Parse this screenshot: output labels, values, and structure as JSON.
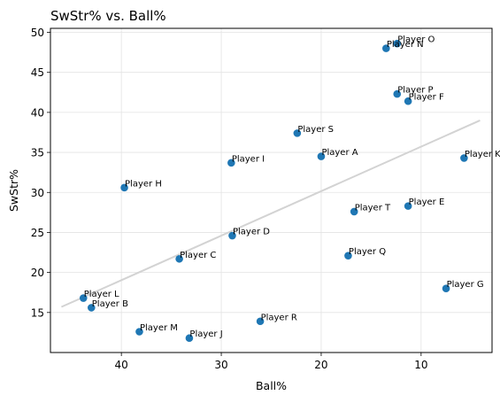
{
  "chart_data": {
    "type": "scatter",
    "title": "SwStr% vs. Ball%",
    "xlabel": "Ball%",
    "ylabel": "SwStr%",
    "x_inverted": true,
    "xlim": [
      47.1,
      2.9
    ],
    "ylim": [
      10.0,
      50.5
    ],
    "xticks": [
      40,
      30,
      20,
      10
    ],
    "yticks": [
      15,
      20,
      25,
      30,
      35,
      40,
      45,
      50
    ],
    "grid": true,
    "point_color": "#1f77b4",
    "trend_color": "#d3d3d3",
    "points": [
      {
        "label": "Player A",
        "x": 20.0,
        "y": 34.5
      },
      {
        "label": "Player B",
        "x": 43.0,
        "y": 15.6
      },
      {
        "label": "Player C",
        "x": 34.2,
        "y": 21.7
      },
      {
        "label": "Player D",
        "x": 28.9,
        "y": 24.6
      },
      {
        "label": "Player E",
        "x": 11.3,
        "y": 28.3
      },
      {
        "label": "Player F",
        "x": 11.3,
        "y": 41.4
      },
      {
        "label": "Player G",
        "x": 7.5,
        "y": 18.0
      },
      {
        "label": "Player H",
        "x": 39.7,
        "y": 30.6
      },
      {
        "label": "Player I",
        "x": 29.0,
        "y": 33.7
      },
      {
        "label": "Player J",
        "x": 33.2,
        "y": 11.8
      },
      {
        "label": "Player K",
        "x": 5.7,
        "y": 34.3
      },
      {
        "label": "Player L",
        "x": 43.8,
        "y": 16.8
      },
      {
        "label": "Player M",
        "x": 38.2,
        "y": 12.6
      },
      {
        "label": "Player N",
        "x": 13.5,
        "y": 48.0
      },
      {
        "label": "Player O",
        "x": 12.4,
        "y": 48.6
      },
      {
        "label": "Player P",
        "x": 12.4,
        "y": 42.3
      },
      {
        "label": "Player Q",
        "x": 17.3,
        "y": 22.1
      },
      {
        "label": "Player R",
        "x": 26.1,
        "y": 13.9
      },
      {
        "label": "Player S",
        "x": 22.4,
        "y": 37.4
      },
      {
        "label": "Player T",
        "x": 16.7,
        "y": 27.6
      }
    ],
    "trend_line": {
      "x": [
        46.0,
        4.1
      ],
      "y": [
        15.7,
        39.0
      ]
    }
  }
}
